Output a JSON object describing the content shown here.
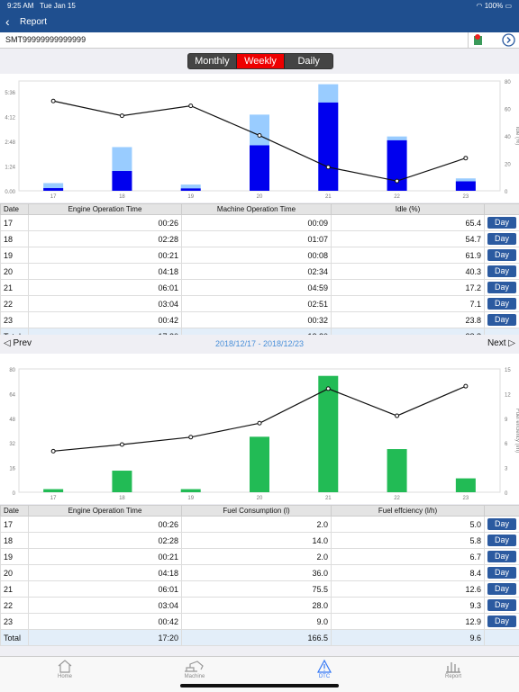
{
  "status": {
    "time": "9:25 AM",
    "date": "Tue Jan 15",
    "battery": "100%"
  },
  "nav": {
    "title": "Report"
  },
  "serial": "SMT99999999999999",
  "segments": {
    "monthly": "Monthly",
    "weekly": "Weekly",
    "daily": "Daily",
    "active": "weekly"
  },
  "colors": {
    "nav": "#1f4f8f",
    "machine_bar": "#0000ee",
    "engine_bar": "#99ccff",
    "fuel_bar": "#22bb55",
    "active_segment": "#ee0000"
  },
  "chart_data": [
    {
      "type": "bar",
      "categories": [
        "17",
        "18",
        "19",
        "20",
        "21",
        "22",
        "23"
      ],
      "series": [
        {
          "values": [
            0.433,
            2.467,
            0.35,
            4.3,
            6.017,
            3.067,
            0.7
          ]
        },
        {
          "values": [
            0.15,
            1.117,
            0.133,
            2.567,
            4.983,
            2.85,
            0.533
          ]
        },
        {
          "values": [
            65.4,
            54.7,
            61.9,
            40.3,
            17.2,
            7.1,
            23.8
          ]
        }
      ],
      "y_ticks": [
        "0.00",
        "1:24",
        "2:48",
        "4:12",
        "5:36"
      ],
      "y2_ticks": [
        "0",
        "20",
        "40",
        "60",
        "80"
      ],
      "ylabel": "Time",
      "y2label": "Idle (%)",
      "ylim": [
        0,
        6.2
      ],
      "y2lim": [
        0,
        80
      ]
    },
    {
      "type": "bar",
      "categories": [
        "17",
        "18",
        "19",
        "20",
        "21",
        "22",
        "23"
      ],
      "series": [
        {
          "values": [
            2.0,
            14.0,
            2.0,
            36.0,
            75.5,
            28.0,
            9.0
          ]
        },
        {
          "values": [
            5.0,
            5.8,
            6.7,
            8.4,
            12.6,
            9.3,
            12.9
          ]
        }
      ],
      "y_ticks": [
        "0",
        "16",
        "32",
        "48",
        "64",
        "80"
      ],
      "y2_ticks": [
        "0",
        "3",
        "6",
        "9",
        "12",
        "15"
      ],
      "ylabel": "Fuel Consumption (l)",
      "y2label": "Fuel effciency (l/h)",
      "ylim": [
        0,
        80
      ],
      "y2lim": [
        0,
        15
      ]
    }
  ],
  "table1": {
    "headers": [
      "Date",
      "Engine Operation Time",
      "Machine Operation Time",
      "Idle (%)"
    ],
    "rows": [
      [
        "17",
        "00:26",
        "00:09",
        "65.4"
      ],
      [
        "18",
        "02:28",
        "01:07",
        "54.7"
      ],
      [
        "19",
        "00:21",
        "00:08",
        "61.9"
      ],
      [
        "20",
        "04:18",
        "02:34",
        "40.3"
      ],
      [
        "21",
        "06:01",
        "04:59",
        "17.2"
      ],
      [
        "22",
        "03:04",
        "02:51",
        "7.1"
      ],
      [
        "23",
        "00:42",
        "00:32",
        "23.8"
      ]
    ],
    "total": [
      "Total",
      "17:20",
      "12:20",
      "28.8"
    ]
  },
  "pager": {
    "prev": "Prev",
    "next": "Next",
    "range": "2018/12/17 - 2018/12/23"
  },
  "table2": {
    "headers": [
      "Date",
      "Engine Operation Time",
      "Fuel Consumption (l)",
      "Fuel effciency (l/h)"
    ],
    "rows": [
      [
        "17",
        "00:26",
        "2.0",
        "5.0"
      ],
      [
        "18",
        "02:28",
        "14.0",
        "5.8"
      ],
      [
        "19",
        "00:21",
        "2.0",
        "6.7"
      ],
      [
        "20",
        "04:18",
        "36.0",
        "8.4"
      ],
      [
        "21",
        "06:01",
        "75.5",
        "12.6"
      ],
      [
        "22",
        "03:04",
        "28.0",
        "9.3"
      ],
      [
        "23",
        "00:42",
        "9.0",
        "12.9"
      ]
    ],
    "total": [
      "Total",
      "17:20",
      "166.5",
      "9.6"
    ]
  },
  "day_button": "Day",
  "tabs": [
    "Home",
    "Machine",
    "DTC",
    "Report"
  ]
}
